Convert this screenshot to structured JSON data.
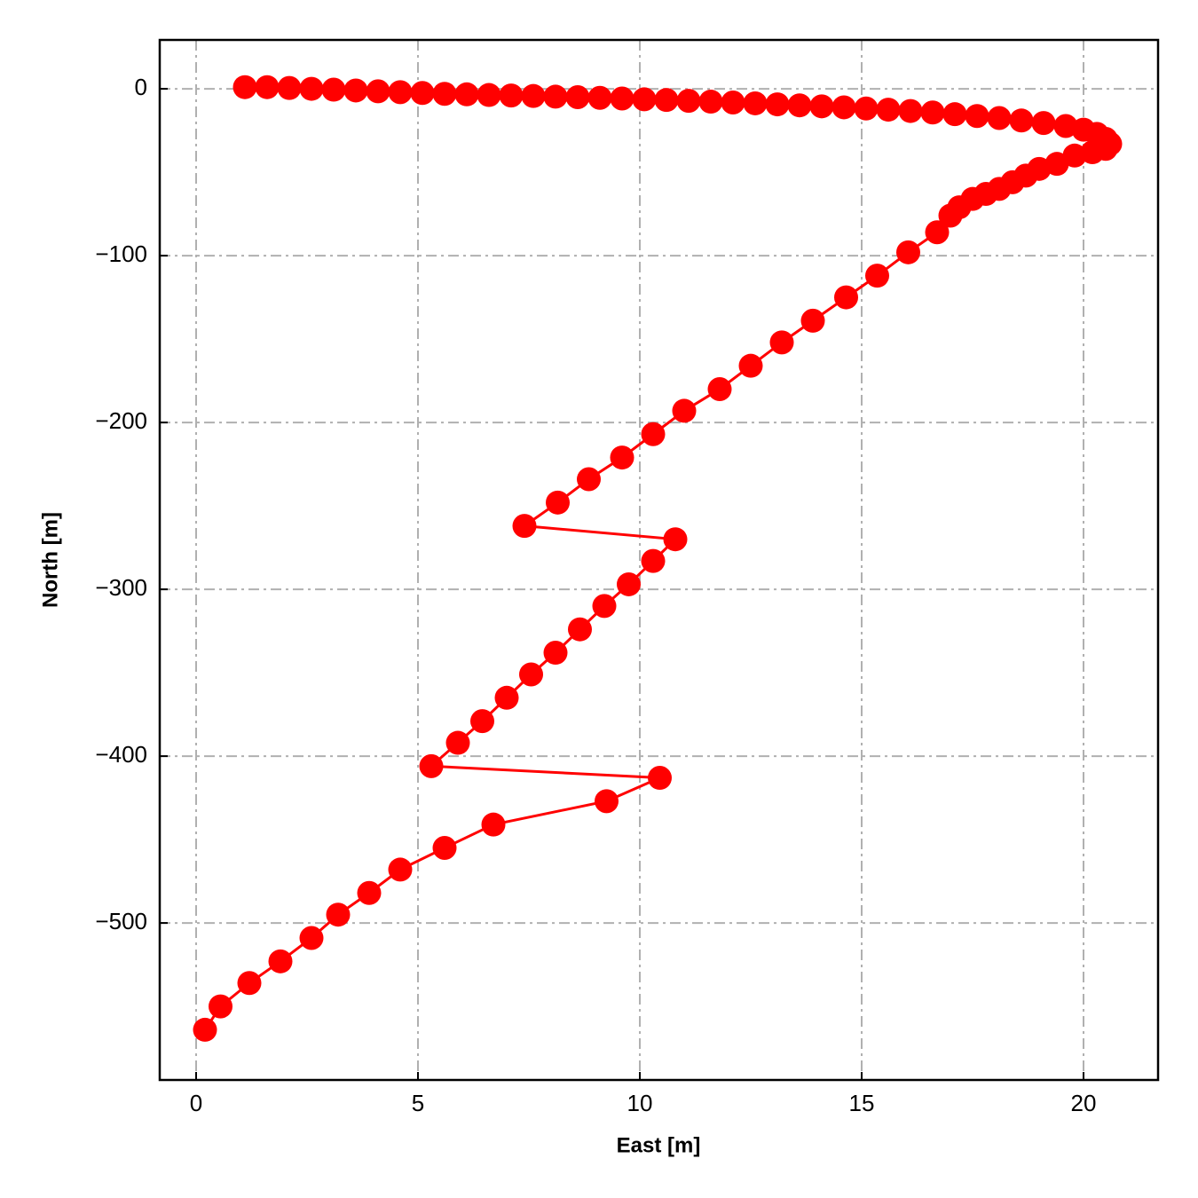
{
  "chart_data": {
    "type": "line",
    "xlabel": "East [m]",
    "ylabel": "North [m]",
    "color": "#ff0000",
    "x": [
      1.1,
      1.6,
      2.1,
      2.6,
      3.1,
      3.6,
      4.1,
      4.6,
      5.1,
      5.6,
      6.1,
      6.6,
      7.1,
      7.6,
      8.1,
      8.6,
      9.1,
      9.6,
      10.1,
      10.6,
      11.1,
      11.6,
      12.1,
      12.6,
      13.1,
      13.6,
      14.1,
      14.6,
      15.1,
      15.6,
      16.1,
      16.6,
      17.1,
      17.6,
      18.1,
      18.6,
      19.1,
      19.6,
      20.0,
      20.3,
      20.5,
      20.6,
      20.5,
      20.2,
      19.8,
      19.4,
      19.0,
      18.7,
      18.4,
      18.1,
      17.8,
      17.5,
      17.2,
      17.0,
      16.7,
      16.05,
      15.35,
      14.65,
      13.9,
      13.2,
      12.5,
      11.8,
      11.0,
      10.3,
      9.6,
      8.85,
      8.15,
      7.4,
      10.8,
      10.3,
      9.75,
      9.2,
      8.65,
      8.1,
      7.55,
      7.0,
      6.45,
      5.9,
      5.3,
      10.45,
      9.25,
      6.7,
      5.6,
      4.6,
      3.9,
      3.2,
      2.6,
      1.9,
      1.2,
      0.55,
      0.2
    ],
    "values": [
      1,
      1,
      0.5,
      0,
      -0.5,
      -1,
      -1.5,
      -2,
      -2.5,
      -3,
      -3.3,
      -3.7,
      -4,
      -4.3,
      -4.7,
      -5,
      -5.4,
      -5.8,
      -6.3,
      -6.7,
      -7.2,
      -7.7,
      -8.2,
      -8.7,
      -9.3,
      -9.9,
      -10.5,
      -11.1,
      -11.8,
      -12.5,
      -13.3,
      -14.2,
      -15.2,
      -16.3,
      -17.5,
      -19,
      -20.5,
      -22.3,
      -24.5,
      -27,
      -30,
      -33,
      -36,
      -38,
      -40,
      -45,
      -48,
      -52,
      -56,
      -60,
      -63,
      -66,
      -71,
      -76,
      -86,
      -98,
      -112,
      -125,
      -139,
      -152,
      -166,
      -180,
      -193,
      -207,
      -221,
      -234,
      -248,
      -262,
      -270,
      -283,
      -297,
      -310,
      -324,
      -338,
      -351,
      -365,
      -379,
      -392,
      -406,
      -413,
      -427,
      -441,
      -455,
      -468,
      -482,
      -495,
      -509,
      -523,
      -536,
      -550,
      -564
    ],
    "xlim": [
      -0.82,
      21.68
    ],
    "ylim": [
      -594.1,
      29.3
    ],
    "xticks": [
      0,
      5,
      10,
      15,
      20
    ],
    "yticks": [
      0,
      {
        "value": -100,
        "label": "−100"
      },
      {
        "value": -200,
        "label": "−200"
      },
      {
        "value": -300,
        "label": "−300"
      },
      {
        "value": -400,
        "label": "−400"
      },
      {
        "value": -500,
        "label": "−500"
      }
    ],
    "grid": true
  }
}
